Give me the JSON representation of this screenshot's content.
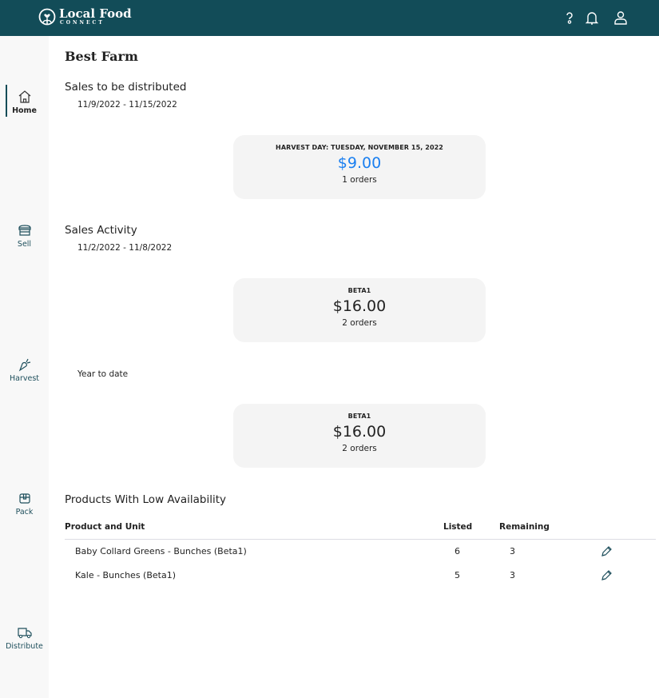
{
  "header": {
    "brand": "Local Food",
    "brand_sub": "CONNECT",
    "icons": [
      "help-icon",
      "bell-icon",
      "user-icon"
    ],
    "color": "#124c58"
  },
  "sidebar": {
    "items": [
      {
        "label": "Home",
        "icon": "home-icon",
        "active": true
      },
      {
        "label": "Sell",
        "icon": "storefront-icon"
      },
      {
        "label": "Harvest",
        "icon": "carrot-icon"
      },
      {
        "label": "Pack",
        "icon": "box-icon"
      },
      {
        "label": "Distribute",
        "icon": "truck-icon"
      }
    ]
  },
  "main": {
    "title": "Best Farm",
    "to_distribute": {
      "heading": "Sales to be distributed",
      "range": "11/9/2022 - 11/15/2022",
      "card": {
        "label": "HARVEST DAY: TUESDAY, NOVEMBER 15, 2022",
        "amount": "$9.00",
        "orders": "1 orders",
        "amount_color": "#1a7ff0"
      }
    },
    "activity": {
      "heading": "Sales Activity",
      "range": "11/2/2022 - 11/8/2022",
      "card": {
        "label": "BETA1",
        "amount": "$16.00",
        "orders": "2 orders"
      }
    },
    "ytd": {
      "label": "Year to date",
      "card": {
        "label": "BETA1",
        "amount": "$16.00",
        "orders": "2 orders"
      }
    },
    "low": {
      "heading": "Products With Low Availability",
      "columns": [
        "Product and Unit",
        "Listed",
        "Remaining"
      ],
      "rows": [
        {
          "product": "Baby Collard Greens - Bunches (Beta1)",
          "listed": "6",
          "remaining": "3"
        },
        {
          "product": "Kale - Bunches (Beta1)",
          "listed": "5",
          "remaining": "3"
        }
      ]
    }
  }
}
